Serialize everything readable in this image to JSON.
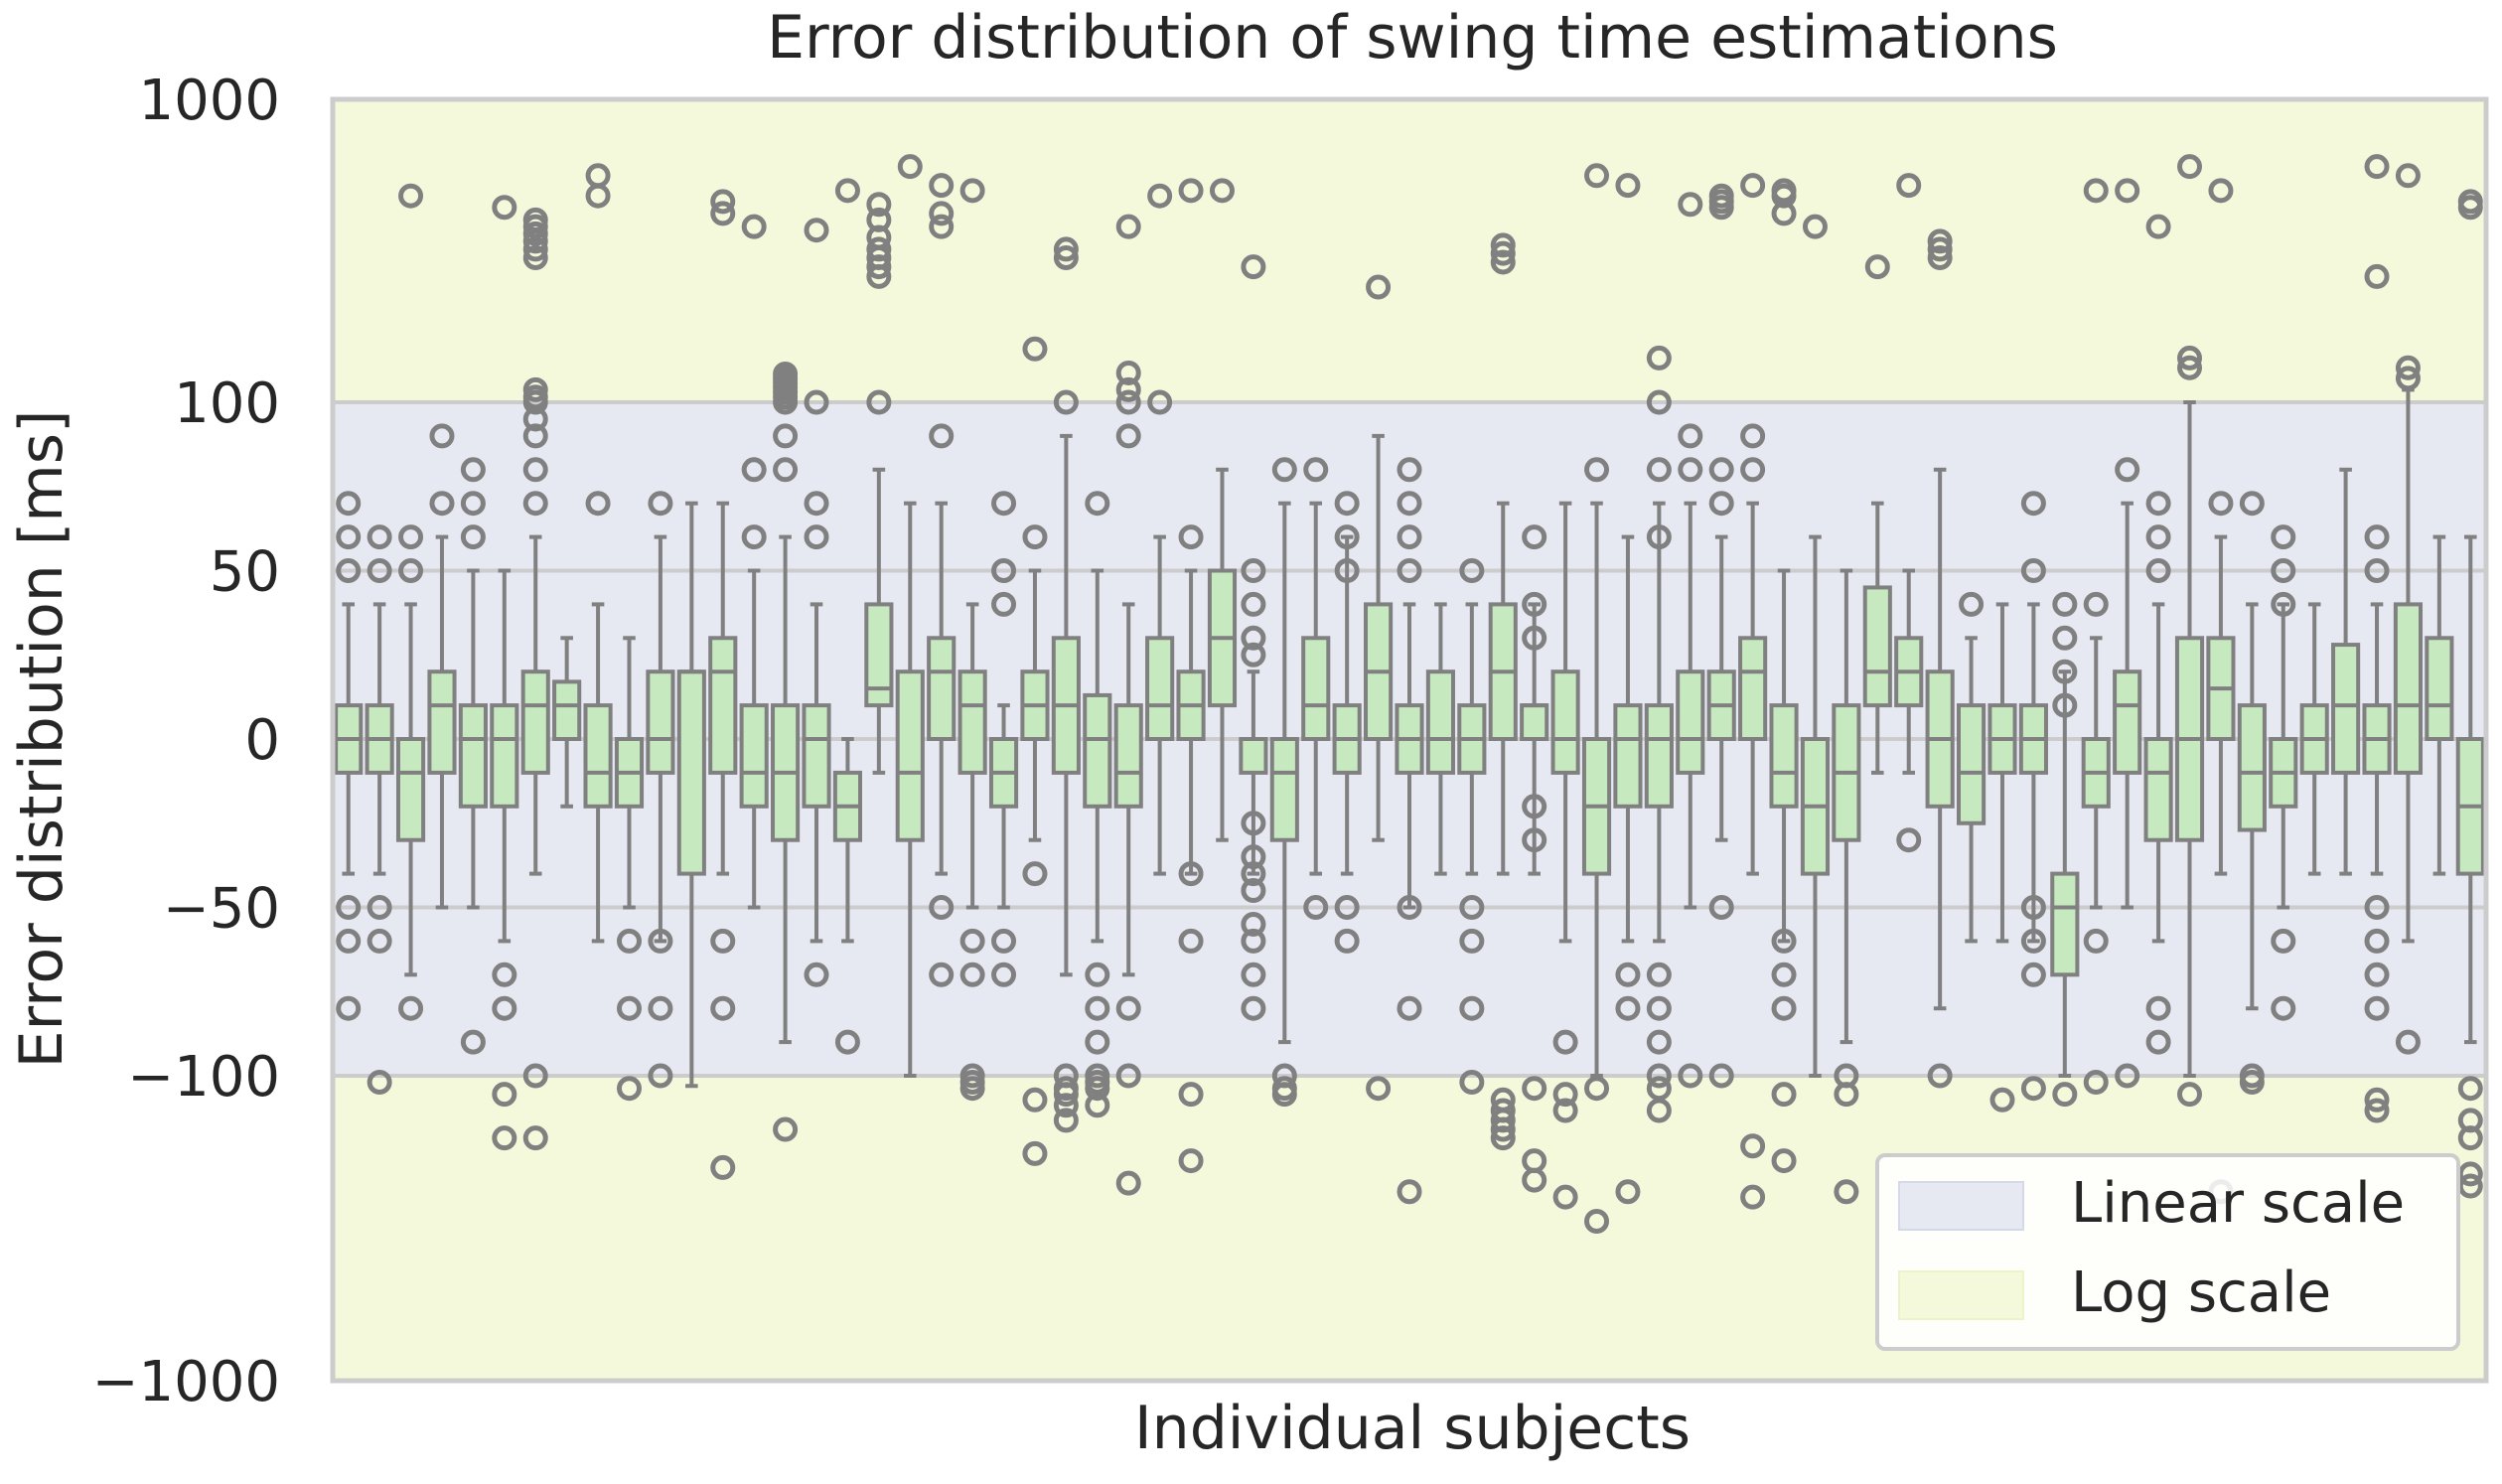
{
  "chart_data": {
    "type": "box",
    "title": "Error distribution of swing time estimations",
    "xlabel": "Individual subjects",
    "ylabel": "Error distribution [ms]",
    "y_scale": "symlog (linear between -100 and 100, log beyond)",
    "ylim": [
      -1000,
      1000
    ],
    "y_ticks": [
      {
        "value": 1000,
        "label": "1000"
      },
      {
        "value": 100,
        "label": "100"
      },
      {
        "value": 50,
        "label": "50"
      },
      {
        "value": 0,
        "label": "0"
      },
      {
        "value": -50,
        "label": "−50"
      },
      {
        "value": -100,
        "label": "−100"
      },
      {
        "value": -1000,
        "label": "−1000"
      }
    ],
    "regions": [
      {
        "name": "Linear scale",
        "from": -100,
        "to": 100,
        "color": "#e6e8f2"
      },
      {
        "name": "Log scale",
        "from": 100,
        "to": 1000,
        "color": "#f5f9dc"
      },
      {
        "name": "Log scale",
        "from": -1000,
        "to": -100,
        "color": "#f5f9dc"
      }
    ],
    "legend": {
      "position": "bottom-right",
      "entries": [
        {
          "label": "Linear scale",
          "color": "#e6e8f2"
        },
        {
          "label": "Log scale",
          "color": "#f5f9dc"
        }
      ]
    },
    "grid": true,
    "box_color": "#c7e9c0",
    "edge_color": "#808080",
    "boxes": [
      {
        "q1": -10,
        "median": 0,
        "q3": 10,
        "whislo": -40,
        "whishi": 40,
        "fliers": [
          50,
          60,
          70,
          -50,
          -60,
          -80
        ]
      },
      {
        "q1": -10,
        "median": 0,
        "q3": 10,
        "whislo": -40,
        "whishi": 40,
        "fliers": [
          50,
          60,
          -50,
          -60,
          -105
        ]
      },
      {
        "q1": -30,
        "median": -10,
        "q3": 0,
        "whislo": -70,
        "whishi": 40,
        "fliers": [
          50,
          60,
          -80,
          480
        ]
      },
      {
        "q1": -10,
        "median": 10,
        "q3": 20,
        "whislo": -50,
        "whishi": 60,
        "fliers": [
          70,
          90
        ]
      },
      {
        "q1": -20,
        "median": 0,
        "q3": 10,
        "whislo": -50,
        "whishi": 50,
        "fliers": [
          60,
          70,
          80,
          -90
        ]
      },
      {
        "q1": -20,
        "median": 0,
        "q3": 10,
        "whislo": -60,
        "whishi": 50,
        "fliers": [
          -70,
          -80,
          -115,
          -160,
          440
        ]
      },
      {
        "q1": -10,
        "median": 10,
        "q3": 20,
        "whislo": -40,
        "whishi": 60,
        "fliers": [
          70,
          80,
          90,
          95,
          100,
          104,
          110,
          -100,
          -160,
          300,
          320,
          340,
          360,
          380,
          400
        ]
      },
      {
        "q1": 0,
        "median": 10,
        "q3": 17,
        "whislo": -20,
        "whishi": 30,
        "fliers": []
      },
      {
        "q1": -20,
        "median": -10,
        "q3": 10,
        "whislo": -60,
        "whishi": 40,
        "fliers": [
          70,
          480,
          560
        ]
      },
      {
        "q1": -20,
        "median": -10,
        "q3": 0,
        "whislo": -50,
        "whishi": 30,
        "fliers": [
          -60,
          -80,
          -110
        ]
      },
      {
        "q1": -10,
        "median": 0,
        "q3": 20,
        "whislo": -60,
        "whishi": 60,
        "fliers": [
          70,
          -60,
          -80,
          -100
        ]
      },
      {
        "q1": -40,
        "median": 20,
        "q3": 20,
        "whislo": -108,
        "whishi": 70,
        "fliers": []
      },
      {
        "q1": -10,
        "median": 20,
        "q3": 30,
        "whislo": -40,
        "whishi": 70,
        "fliers": [
          -60,
          -80,
          -200,
          420,
          460
        ]
      },
      {
        "q1": -20,
        "median": -10,
        "q3": 10,
        "whislo": -50,
        "whishi": 50,
        "fliers": [
          60,
          80,
          380
        ]
      },
      {
        "q1": -30,
        "median": -10,
        "q3": 10,
        "whislo": -90,
        "whishi": 60,
        "fliers": [
          80,
          90,
          100,
          104,
          108,
          112,
          116,
          120,
          124,
          -150
        ]
      },
      {
        "q1": -20,
        "median": 0,
        "q3": 10,
        "whislo": -60,
        "whishi": 40,
        "fliers": [
          60,
          70,
          -70,
          100,
          370
        ]
      },
      {
        "q1": -30,
        "median": -20,
        "q3": -10,
        "whislo": -60,
        "whishi": 0,
        "fliers": [
          -90,
          500
        ]
      },
      {
        "q1": 10,
        "median": 15,
        "q3": 40,
        "whislo": -10,
        "whishi": 80,
        "fliers": [
          100,
          260,
          280,
          300,
          320,
          350,
          400,
          450
        ]
      },
      {
        "q1": -30,
        "median": -10,
        "q3": 20,
        "whislo": -100,
        "whishi": 70,
        "fliers": [
          600
        ]
      },
      {
        "q1": 0,
        "median": 20,
        "q3": 30,
        "whislo": -40,
        "whishi": 70,
        "fliers": [
          90,
          -50,
          -70,
          380,
          420,
          520
        ]
      },
      {
        "q1": -10,
        "median": 10,
        "q3": 20,
        "whislo": -50,
        "whishi": 40,
        "fliers": [
          -60,
          -70,
          -100,
          -105,
          -110,
          500
        ]
      },
      {
        "q1": -20,
        "median": -10,
        "q3": 0,
        "whislo": -50,
        "whishi": 10,
        "fliers": [
          40,
          50,
          70,
          -60,
          -70
        ]
      },
      {
        "q1": 0,
        "median": 10,
        "q3": 20,
        "whislo": -30,
        "whishi": 50,
        "fliers": [
          60,
          -40,
          -120,
          -180,
          150
        ]
      },
      {
        "q1": -10,
        "median": 10,
        "q3": 30,
        "whislo": -70,
        "whishi": 90,
        "fliers": [
          100,
          -100,
          -110,
          -115,
          -125,
          -140,
          300,
          320
        ]
      },
      {
        "q1": -20,
        "median": 0,
        "q3": 13,
        "whislo": -60,
        "whishi": 50,
        "fliers": [
          70,
          -70,
          -80,
          -90,
          -100,
          -105,
          -110,
          -125
        ]
      },
      {
        "q1": -20,
        "median": -10,
        "q3": 10,
        "whislo": -70,
        "whishi": 40,
        "fliers": [
          90,
          100,
          110,
          125,
          -80,
          -100,
          -225,
          380
        ]
      },
      {
        "q1": 0,
        "median": 10,
        "q3": 30,
        "whislo": -40,
        "whishi": 60,
        "fliers": [
          100,
          480
        ]
      },
      {
        "q1": 0,
        "median": 10,
        "q3": 20,
        "whislo": -40,
        "whishi": 50,
        "fliers": [
          60,
          -40,
          -60,
          -115,
          -190,
          500
        ]
      },
      {
        "q1": 10,
        "median": 30,
        "q3": 50,
        "whislo": -30,
        "whishi": 80,
        "fliers": [
          500
        ]
      },
      {
        "q1": -10,
        "median": 0,
        "q3": 0,
        "whislo": -40,
        "whishi": 20,
        "fliers": [
          25,
          30,
          40,
          50,
          -25,
          -35,
          -40,
          -45,
          -55,
          -60,
          -70,
          -80,
          280
        ]
      },
      {
        "q1": -30,
        "median": -10,
        "q3": 0,
        "whislo": -90,
        "whishi": 70,
        "fliers": [
          80,
          -100,
          -110,
          -115
        ]
      },
      {
        "q1": 0,
        "median": 10,
        "q3": 30,
        "whislo": -40,
        "whishi": 70,
        "fliers": [
          80,
          -50
        ]
      },
      {
        "q1": -10,
        "median": 0,
        "q3": 10,
        "whislo": -40,
        "whishi": 60,
        "fliers": [
          70,
          50,
          60,
          -50,
          -60
        ]
      },
      {
        "q1": 0,
        "median": 20,
        "q3": 40,
        "whislo": -30,
        "whishi": 90,
        "fliers": [
          -110,
          240
        ]
      },
      {
        "q1": -10,
        "median": 0,
        "q3": 10,
        "whislo": -50,
        "whishi": 40,
        "fliers": [
          50,
          60,
          70,
          80,
          -50,
          -80,
          -240
        ]
      },
      {
        "q1": -10,
        "median": 0,
        "q3": 20,
        "whislo": -40,
        "whishi": 40,
        "fliers": []
      },
      {
        "q1": -10,
        "median": 0,
        "q3": 10,
        "whislo": -40,
        "whishi": 40,
        "fliers": [
          50,
          -50,
          -60,
          -80,
          -105
        ]
      },
      {
        "q1": 0,
        "median": 20,
        "q3": 40,
        "whislo": -40,
        "whishi": 70,
        "fliers": [
          -120,
          -130,
          -140,
          -150,
          -160,
          290,
          310,
          330
        ]
      },
      {
        "q1": 0,
        "median": 10,
        "q3": 10,
        "whislo": -40,
        "whishi": 40,
        "fliers": [
          30,
          40,
          60,
          -20,
          -30,
          -190,
          -220,
          -110
        ]
      },
      {
        "q1": -10,
        "median": 0,
        "q3": 20,
        "whislo": -60,
        "whishi": 70,
        "fliers": [
          -90,
          -115,
          -130,
          -250
        ]
      },
      {
        "q1": -40,
        "median": -20,
        "q3": 0,
        "whislo": -100,
        "whishi": 70,
        "fliers": [
          80,
          -110,
          -300,
          560
        ]
      },
      {
        "q1": -20,
        "median": 0,
        "q3": 10,
        "whislo": -60,
        "whishi": 60,
        "fliers": [
          -70,
          -80,
          -240,
          520
        ]
      },
      {
        "q1": -20,
        "median": 0,
        "q3": 10,
        "whislo": -60,
        "whishi": 70,
        "fliers": [
          80,
          60,
          -70,
          -80,
          -90,
          -100,
          -110,
          -130,
          140,
          100
        ]
      },
      {
        "q1": -10,
        "median": 0,
        "q3": 20,
        "whislo": -50,
        "whishi": 70,
        "fliers": [
          80,
          90,
          -100,
          450
        ]
      },
      {
        "q1": 0,
        "median": 10,
        "q3": 20,
        "whislo": -30,
        "whishi": 60,
        "fliers": [
          70,
          80,
          -50,
          -100,
          440,
          460,
          480
        ]
      },
      {
        "q1": 0,
        "median": 20,
        "q3": 30,
        "whislo": -40,
        "whishi": 70,
        "fliers": [
          80,
          90,
          -170,
          -250,
          520
        ]
      },
      {
        "q1": -20,
        "median": -10,
        "q3": 10,
        "whislo": -60,
        "whishi": 50,
        "fliers": [
          -60,
          -70,
          -80,
          -115,
          -190,
          420,
          480,
          500
        ]
      },
      {
        "q1": -40,
        "median": -20,
        "q3": 0,
        "whislo": -100,
        "whishi": 60,
        "fliers": [
          380
        ]
      },
      {
        "q1": -30,
        "median": -10,
        "q3": 10,
        "whislo": -90,
        "whishi": 50,
        "fliers": [
          -100,
          -115,
          -240
        ]
      },
      {
        "q1": 10,
        "median": 20,
        "q3": 45,
        "whislo": -10,
        "whishi": 70,
        "fliers": [
          280
        ]
      },
      {
        "q1": 10,
        "median": 20,
        "q3": 30,
        "whislo": -10,
        "whishi": 50,
        "fliers": [
          -30,
          520
        ]
      },
      {
        "q1": -20,
        "median": 0,
        "q3": 20,
        "whislo": -80,
        "whishi": 80,
        "fliers": [
          -100,
          300,
          320,
          340
        ]
      },
      {
        "q1": -25,
        "median": -10,
        "q3": 10,
        "whislo": -60,
        "whishi": 30,
        "fliers": [
          40
        ]
      },
      {
        "q1": -10,
        "median": 0,
        "q3": 10,
        "whislo": -60,
        "whishi": 40,
        "fliers": [
          -120
        ]
      },
      {
        "q1": -10,
        "median": 0,
        "q3": 10,
        "whislo": -60,
        "whishi": 40,
        "fliers": [
          50,
          70,
          -50,
          -60,
          -70,
          -110
        ]
      },
      {
        "q1": -70,
        "median": -50,
        "q3": -40,
        "whislo": -100,
        "whishi": 20,
        "fliers": [
          10,
          20,
          30,
          40,
          -115
        ]
      },
      {
        "q1": -20,
        "median": -10,
        "q3": 0,
        "whislo": -50,
        "whishi": 30,
        "fliers": [
          40,
          -60,
          -105,
          500
        ]
      },
      {
        "q1": -10,
        "median": 10,
        "q3": 20,
        "whislo": -50,
        "whishi": 70,
        "fliers": [
          80,
          -100,
          500
        ]
      },
      {
        "q1": -30,
        "median": -10,
        "q3": 0,
        "whislo": -60,
        "whishi": 40,
        "fliers": [
          50,
          60,
          70,
          -80,
          -90,
          380
        ]
      },
      {
        "q1": -30,
        "median": 0,
        "q3": 30,
        "whislo": -100,
        "whishi": 100,
        "fliers": [
          130,
          140,
          -115,
          600
        ]
      },
      {
        "q1": 0,
        "median": 15,
        "q3": 30,
        "whislo": -40,
        "whishi": 60,
        "fliers": [
          70,
          -240,
          500
        ]
      },
      {
        "q1": -27,
        "median": -10,
        "q3": 10,
        "whislo": -80,
        "whishi": 40,
        "fliers": [
          70,
          -100,
          -105
        ]
      },
      {
        "q1": -20,
        "median": -10,
        "q3": 0,
        "whislo": -50,
        "whishi": 40,
        "fliers": [
          40,
          50,
          60,
          -60,
          -80
        ]
      },
      {
        "q1": -10,
        "median": 0,
        "q3": 10,
        "whislo": -40,
        "whishi": 40,
        "fliers": []
      },
      {
        "q1": -10,
        "median": 10,
        "q3": 28,
        "whislo": -40,
        "whishi": 80,
        "fliers": []
      },
      {
        "q1": -10,
        "median": 0,
        "q3": 10,
        "whislo": -40,
        "whishi": 40,
        "fliers": [
          50,
          60,
          -50,
          -60,
          -70,
          -80,
          -120,
          -130,
          260,
          600
        ]
      },
      {
        "q1": -10,
        "median": 10,
        "q3": 40,
        "whislo": -60,
        "whishi": 110,
        "fliers": [
          120,
          130,
          -90,
          560
        ]
      },
      {
        "q1": 0,
        "median": 10,
        "q3": 30,
        "whislo": -40,
        "whishi": 60,
        "fliers": []
      },
      {
        "q1": -40,
        "median": -20,
        "q3": 0,
        "whislo": -90,
        "whishi": 60,
        "fliers": [
          -110,
          -140,
          -160,
          -210,
          -230,
          440,
          460
        ]
      }
    ]
  }
}
